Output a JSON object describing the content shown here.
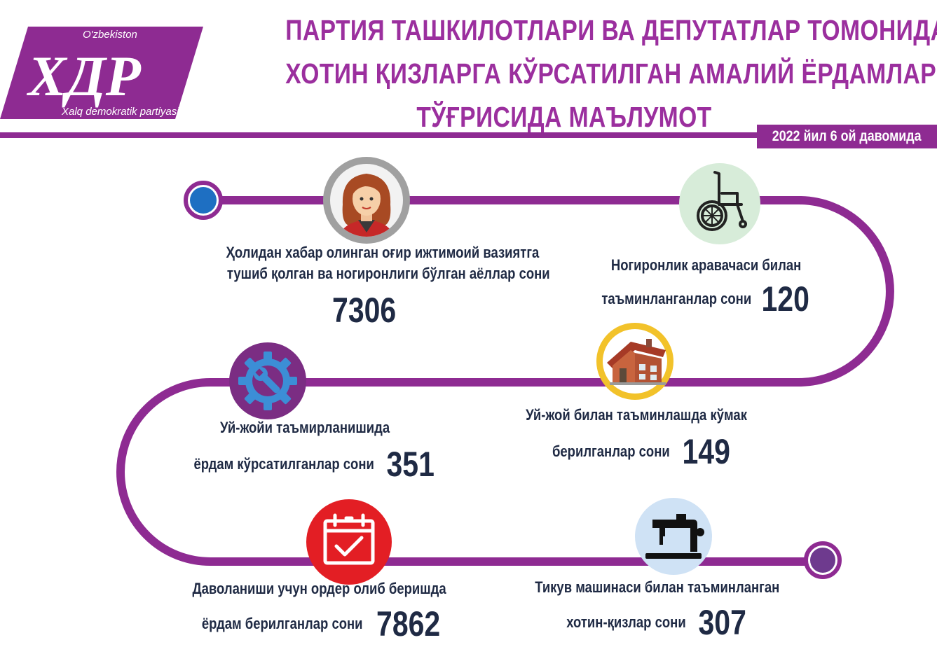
{
  "logo": {
    "top_text": "O'zbekiston",
    "main_text": "ХДР",
    "sub_text": "Xalq demokratik partiyasi"
  },
  "title": {
    "lines": [
      "ПАРТИЯ ТАШКИЛОТЛАРИ ВА ДЕПУТАТЛАР ТОМОНИДАН",
      "ХОТИН ҚИЗЛАРГА КЎРСАТИЛГАН АМАЛИЙ ЁРДАМЛАР",
      "ТЎҒРИСИДА МАЪЛУМОТ"
    ]
  },
  "period": "2022 йил  6 ой давомида",
  "colors": {
    "purple": "#8e2b92",
    "title": "#9b2f9e",
    "text": "#1f2a44",
    "blue_node": "#1e6fc2"
  },
  "items": [
    {
      "icon": "woman-avatar-icon",
      "label_lines": [
        "Ҳолидан хабар олинган оғир ижтимоий вазиятга",
        "тушиб қолган ва ногиронлиги бўлган аёллар сони"
      ],
      "value": "7306"
    },
    {
      "icon": "wheelchair-icon",
      "label_lines": [
        "Ногиронлик аравачаси билан",
        "таъминланганлар сони"
      ],
      "value": "120"
    },
    {
      "icon": "wrench-gear-icon",
      "label_lines": [
        "Уй-жойи  таъмирланишида",
        "ёрдам кўрсатилганлар сони"
      ],
      "value": "351"
    },
    {
      "icon": "house-icon",
      "label_lines": [
        "Уй-жой билан таъминлашда кўмак",
        "берилганлар сони"
      ],
      "value": "149"
    },
    {
      "icon": "calendar-check-icon",
      "label_lines": [
        "Даволаниши учун ордер олиб беришда",
        "ёрдам берилганлар сони"
      ],
      "value": "7862"
    },
    {
      "icon": "sewing-machine-icon",
      "label_lines": [
        "Тикув машинаси билан таъминланган",
        "хотин-қизлар сони"
      ],
      "value": "307"
    }
  ]
}
